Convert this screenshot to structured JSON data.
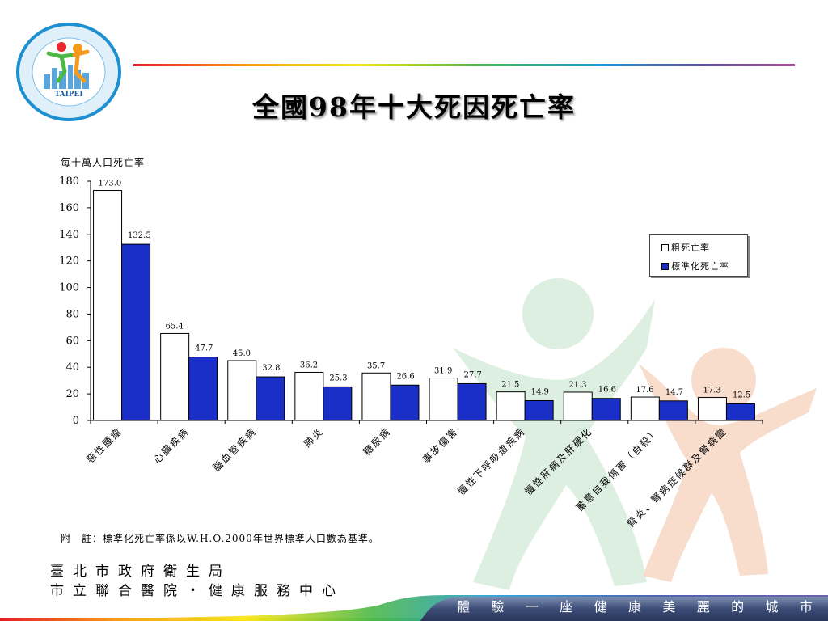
{
  "title": "全國98年十大死因死亡率",
  "logo_text": "TAIPEI",
  "chart_data": {
    "type": "bar",
    "ylabel": "每十萬人口死亡率",
    "ylim": [
      0,
      180
    ],
    "yticks": [
      0,
      20,
      40,
      60,
      80,
      100,
      120,
      140,
      160,
      180
    ],
    "grid": false,
    "legend_position": "right",
    "categories": [
      "惡性腫瘤",
      "心臟疾病",
      "腦血管疾病",
      "肺炎",
      "糖尿病",
      "事故傷害",
      "慢性下呼吸道疾病",
      "慢性肝病及肝硬化",
      "蓄意自我傷害（自殺）",
      "腎炎、腎病症候群及腎病變"
    ],
    "series": [
      {
        "name": "粗死亡率",
        "color": "#ffffff",
        "values": [
          173.0,
          65.4,
          45.0,
          36.2,
          35.7,
          31.9,
          21.5,
          21.3,
          17.6,
          17.3
        ]
      },
      {
        "name": "標準化死亡率",
        "color": "#1a2ec8",
        "values": [
          132.5,
          47.7,
          32.8,
          25.3,
          26.6,
          27.7,
          14.9,
          16.6,
          14.7,
          12.5
        ]
      }
    ]
  },
  "footnote": "附　註：標準化死亡率係以W.H.O.2000年世界標準人口數為基準。",
  "org_line1": "臺北市政府衛生局",
  "org_line2": "市立聯合醫院・健康服務中心",
  "slogan": [
    "體",
    "驗",
    "一",
    "座",
    "健",
    "康",
    "美",
    "麗",
    "的",
    "城",
    "市"
  ]
}
